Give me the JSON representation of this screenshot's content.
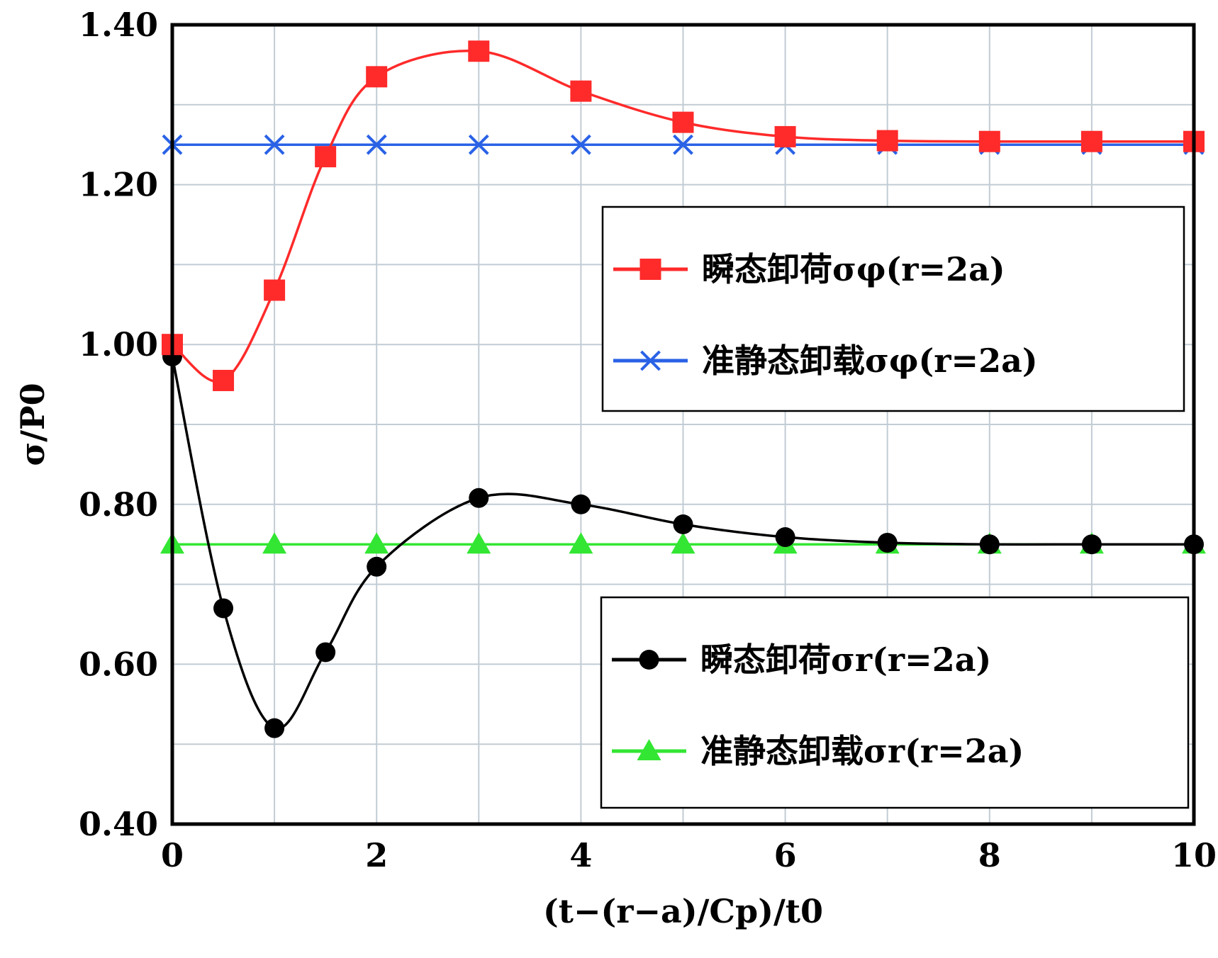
{
  "chart_data": {
    "type": "line",
    "xlabel": "(t−(r−a)/Cp)/t0",
    "ylabel": "σ/P0",
    "xlim": [
      0,
      10
    ],
    "ylim": [
      0.4,
      1.4
    ],
    "xticks": [
      "0",
      "2",
      "4",
      "6",
      "8",
      "10"
    ],
    "yticks": [
      "0.40",
      "0.60",
      "0.80",
      "1.00",
      "1.20",
      "1.40"
    ],
    "grid": true,
    "legend_placement": "two boxes on right side (upper and lower)",
    "series": [
      {
        "name": "瞬态卸荷σφ(r=2a)",
        "color": "#ff2a2a",
        "marker": "square",
        "x": [
          0,
          0.5,
          1,
          1.5,
          2,
          3,
          4,
          5,
          6,
          7,
          8,
          9,
          10
        ],
        "y": [
          1.0,
          0.955,
          1.068,
          1.235,
          1.335,
          1.367,
          1.317,
          1.278,
          1.26,
          1.255,
          1.254,
          1.254,
          1.254
        ]
      },
      {
        "name": "准静态卸载σφ(r=2a)",
        "color": "#2a62e6",
        "marker": "x",
        "x": [
          0,
          1,
          2,
          3,
          4,
          5,
          6,
          7,
          8,
          9,
          10
        ],
        "y": [
          1.25,
          1.25,
          1.25,
          1.25,
          1.25,
          1.25,
          1.25,
          1.25,
          1.25,
          1.25,
          1.25
        ]
      },
      {
        "name": "瞬态卸荷σr(r=2a)",
        "color": "#000000",
        "marker": "circle",
        "x": [
          0,
          0.5,
          1,
          1.5,
          2,
          3,
          4,
          5,
          6,
          7,
          8,
          9,
          10
        ],
        "y": [
          0.985,
          0.67,
          0.52,
          0.615,
          0.722,
          0.808,
          0.8,
          0.775,
          0.759,
          0.752,
          0.75,
          0.75,
          0.75
        ]
      },
      {
        "name": "准静态卸载σr(r=2a)",
        "color": "#33e633",
        "marker": "triangle",
        "x": [
          0,
          1,
          2,
          3,
          4,
          5,
          6,
          7,
          8,
          9,
          10
        ],
        "y": [
          0.75,
          0.75,
          0.75,
          0.75,
          0.75,
          0.75,
          0.75,
          0.75,
          0.75,
          0.75,
          0.75
        ]
      }
    ]
  }
}
